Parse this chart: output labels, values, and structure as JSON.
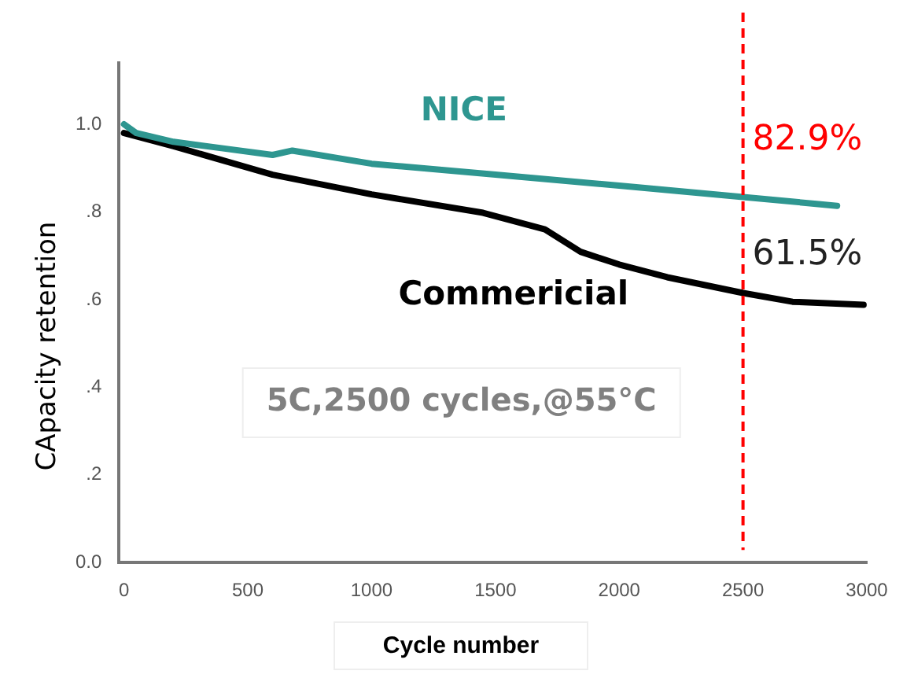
{
  "chart_data": {
    "type": "line",
    "xlabel": "Cycle number",
    "ylabel": "CApacity retention",
    "xlim": [
      -20,
      3000
    ],
    "xticks": [
      0,
      500,
      1000,
      1500,
      2000,
      2500,
      3000
    ],
    "ylim": [
      0,
      1.14
    ],
    "yticks": [
      {
        "value": 0,
        "label": "0.0"
      },
      {
        "value": 0.2,
        "label": ".2"
      },
      {
        "value": 0.4,
        "label": ".4"
      },
      {
        "value": 0.6,
        "label": ".6"
      },
      {
        "value": 0.8,
        "label": ".8"
      },
      {
        "value": 1,
        "label": "1.0"
      }
    ],
    "series": [
      {
        "name": "NICE",
        "color": "#2e9690",
        "x": [
          0,
          50,
          200,
          400,
          600,
          680,
          1000,
          1500,
          2000,
          2500,
          2880
        ],
        "values": [
          1.0,
          0.98,
          0.96,
          0.945,
          0.93,
          0.94,
          0.91,
          0.885,
          0.86,
          0.834,
          0.814
        ]
      },
      {
        "name": "Commericial",
        "color": "#000000",
        "x": [
          0,
          200,
          600,
          1000,
          1450,
          1700,
          1844,
          2000,
          2194,
          2500,
          2700,
          2987
        ],
        "values": [
          0.98,
          0.95,
          0.885,
          0.84,
          0.798,
          0.76,
          0.709,
          0.68,
          0.651,
          0.615,
          0.595,
          0.588
        ]
      }
    ],
    "ref_lines": [
      {
        "axis": "x",
        "value": 2500,
        "color": "#ff0000",
        "line_style": "dashed"
      }
    ],
    "annotations": [
      "82.9%",
      "61.5%",
      "5C,2500 cycles,@55°C"
    ],
    "grid": false,
    "legend": false,
    "marker": "none",
    "line_style": "solid"
  }
}
